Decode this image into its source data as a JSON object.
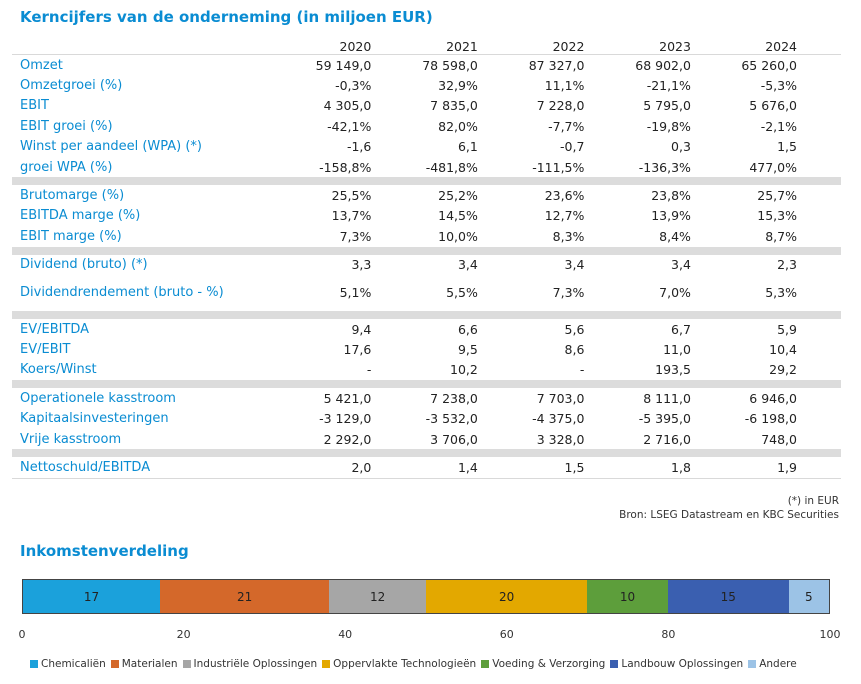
{
  "title": "Kerncijfers van de onderneming (in miljoen EUR)",
  "years": [
    "2020",
    "2021",
    "2022",
    "2023",
    "2024"
  ],
  "groups": [
    {
      "rows": [
        {
          "label": "Omzet",
          "values": [
            "59 149,0",
            "78 598,0",
            "87 327,0",
            "68 902,0",
            "65 260,0"
          ]
        },
        {
          "label": "Omzetgroei (%)",
          "values": [
            "-0,3%",
            "32,9%",
            "11,1%",
            "-21,1%",
            "-5,3%"
          ]
        },
        {
          "label": "EBIT",
          "values": [
            "4 305,0",
            "7 835,0",
            "7 228,0",
            "5 795,0",
            "5 676,0"
          ]
        },
        {
          "label": "EBIT groei (%)",
          "values": [
            "-42,1%",
            "82,0%",
            "-7,7%",
            "-19,8%",
            "-2,1%"
          ]
        },
        {
          "label": "Winst per aandeel (WPA) (*)",
          "values": [
            "-1,6",
            "6,1",
            "-0,7",
            "0,3",
            "1,5"
          ]
        },
        {
          "label": "groei WPA (%)",
          "values": [
            "-158,8%",
            "-481,8%",
            "-111,5%",
            "-136,3%",
            "477,0%"
          ]
        }
      ]
    },
    {
      "rows": [
        {
          "label": "Brutomarge (%)",
          "values": [
            "25,5%",
            "25,2%",
            "23,6%",
            "23,8%",
            "25,7%"
          ]
        },
        {
          "label": "EBITDA marge (%)",
          "values": [
            "13,7%",
            "14,5%",
            "12,7%",
            "13,9%",
            "15,3%"
          ]
        },
        {
          "label": "EBIT marge (%)",
          "values": [
            "7,3%",
            "10,0%",
            "8,3%",
            "8,4%",
            "8,7%"
          ]
        }
      ]
    },
    {
      "rows": [
        {
          "label": "Dividend (bruto) (*)",
          "values": [
            "3,3",
            "3,4",
            "3,4",
            "3,4",
            "2,3"
          ]
        },
        {
          "label": "Dividendrendement (bruto - %)",
          "values": [
            "5,1%",
            "5,5%",
            "7,3%",
            "7,0%",
            "5,3%"
          ],
          "tall": true
        }
      ]
    },
    {
      "rows": [
        {
          "label": "EV/EBITDA",
          "values": [
            "9,4",
            "6,6",
            "5,6",
            "6,7",
            "5,9"
          ]
        },
        {
          "label": "EV/EBIT",
          "values": [
            "17,6",
            "9,5",
            "8,6",
            "11,0",
            "10,4"
          ]
        },
        {
          "label": "Koers/Winst",
          "values": [
            "-",
            "10,2",
            "-",
            "193,5",
            "29,2"
          ]
        }
      ]
    },
    {
      "rows": [
        {
          "label": "Operationele kasstroom",
          "values": [
            "5 421,0",
            "7 238,0",
            "7 703,0",
            "8 111,0",
            "6 946,0"
          ]
        },
        {
          "label": "Kapitaalsinvesteringen",
          "values": [
            "-3 129,0",
            "-3 532,0",
            "-4 375,0",
            "-5 395,0",
            "-6 198,0"
          ]
        },
        {
          "label": "Vrije kasstroom",
          "values": [
            "2 292,0",
            "3 706,0",
            "3 328,0",
            "2 716,0",
            "748,0"
          ]
        }
      ]
    },
    {
      "rows": [
        {
          "label": "Nettoschuld/EBITDA",
          "values": [
            "2,0",
            "1,4",
            "1,5",
            "1,8",
            "1,9"
          ]
        }
      ]
    }
  ],
  "footnotes": {
    "unit_note": "(*) in EUR",
    "source": "Bron: LSEG Datastream en KBC Securities"
  },
  "income_title": "Inkomstenverdeling",
  "chart_data": {
    "type": "bar",
    "orientation": "horizontal-stacked",
    "title": "Inkomstenverdeling",
    "xlim": [
      0,
      100
    ],
    "xticks": [
      "0",
      "20",
      "40",
      "60",
      "80",
      "100"
    ],
    "legend_position": "bottom",
    "series": [
      {
        "name": "Chemicaliën",
        "value": 17,
        "color": "#1ba1db"
      },
      {
        "name": "Materialen",
        "value": 21,
        "color": "#d4682a"
      },
      {
        "name": "Industriële Oplossingen",
        "value": 12,
        "color": "#a6a6a6"
      },
      {
        "name": "Oppervlakte Technologieën",
        "value": 20,
        "color": "#e3a800"
      },
      {
        "name": "Voeding & Verzorging",
        "value": 10,
        "color": "#5d9e3b"
      },
      {
        "name": "Landbouw Oplossingen",
        "value": 15,
        "color": "#3a5fb0"
      },
      {
        "name": "Andere",
        "value": 5,
        "color": "#9cc3e6"
      }
    ]
  }
}
